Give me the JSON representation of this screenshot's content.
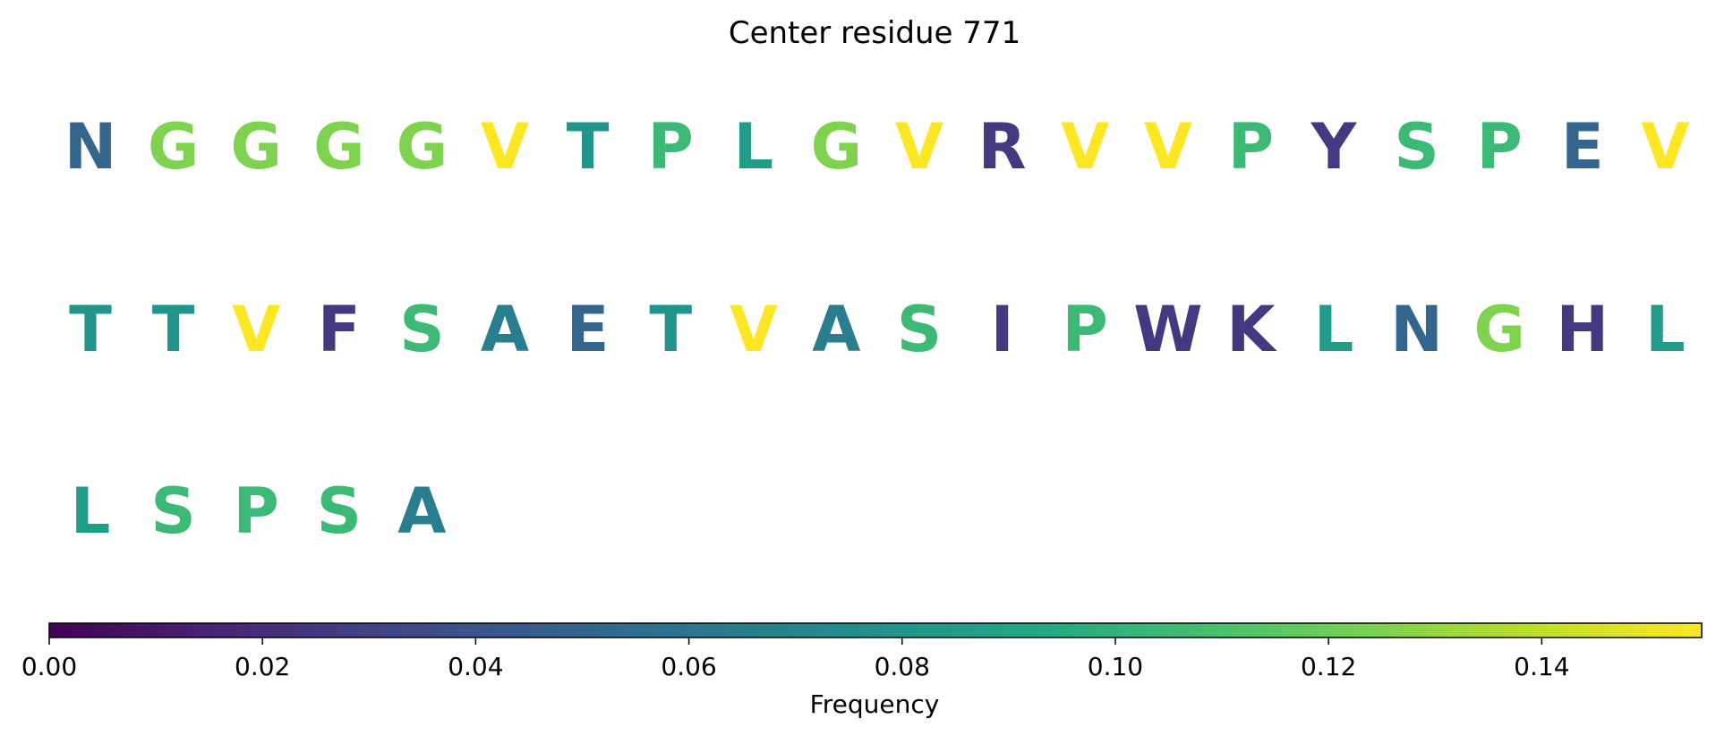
{
  "chart_data": {
    "type": "sequence-heat",
    "title": "Center residue 771",
    "residues": [
      {
        "aa": "N",
        "freq": 0.05
      },
      {
        "aa": "G",
        "freq": 0.125
      },
      {
        "aa": "G",
        "freq": 0.125
      },
      {
        "aa": "G",
        "freq": 0.125
      },
      {
        "aa": "G",
        "freq": 0.125
      },
      {
        "aa": "V",
        "freq": 0.155
      },
      {
        "aa": "T",
        "freq": 0.08
      },
      {
        "aa": "P",
        "freq": 0.105
      },
      {
        "aa": "L",
        "freq": 0.085
      },
      {
        "aa": "G",
        "freq": 0.125
      },
      {
        "aa": "V",
        "freq": 0.155
      },
      {
        "aa": "R",
        "freq": 0.025
      },
      {
        "aa": "V",
        "freq": 0.155
      },
      {
        "aa": "V",
        "freq": 0.155
      },
      {
        "aa": "P",
        "freq": 0.105
      },
      {
        "aa": "Y",
        "freq": 0.025
      },
      {
        "aa": "S",
        "freq": 0.105
      },
      {
        "aa": "P",
        "freq": 0.105
      },
      {
        "aa": "E",
        "freq": 0.05
      },
      {
        "aa": "V",
        "freq": 0.155
      },
      {
        "aa": "T",
        "freq": 0.08
      },
      {
        "aa": "T",
        "freq": 0.08
      },
      {
        "aa": "V",
        "freq": 0.155
      },
      {
        "aa": "F",
        "freq": 0.025
      },
      {
        "aa": "S",
        "freq": 0.105
      },
      {
        "aa": "A",
        "freq": 0.065
      },
      {
        "aa": "E",
        "freq": 0.05
      },
      {
        "aa": "T",
        "freq": 0.08
      },
      {
        "aa": "V",
        "freq": 0.155
      },
      {
        "aa": "A",
        "freq": 0.065
      },
      {
        "aa": "S",
        "freq": 0.105
      },
      {
        "aa": "I",
        "freq": 0.025
      },
      {
        "aa": "P",
        "freq": 0.105
      },
      {
        "aa": "W",
        "freq": 0.025
      },
      {
        "aa": "K",
        "freq": 0.025
      },
      {
        "aa": "L",
        "freq": 0.085
      },
      {
        "aa": "N",
        "freq": 0.05
      },
      {
        "aa": "G",
        "freq": 0.125
      },
      {
        "aa": "H",
        "freq": 0.025
      },
      {
        "aa": "L",
        "freq": 0.085
      },
      {
        "aa": "L",
        "freq": 0.085
      },
      {
        "aa": "S",
        "freq": 0.105
      },
      {
        "aa": "P",
        "freq": 0.105
      },
      {
        "aa": "S",
        "freq": 0.105
      },
      {
        "aa": "A",
        "freq": 0.065
      }
    ],
    "per_row": 20,
    "colorbar": {
      "label": "Frequency",
      "colormap": "viridis",
      "range": [
        0,
        0.155
      ],
      "ticks": [
        0.0,
        0.02,
        0.04,
        0.06,
        0.08,
        0.1,
        0.12,
        0.14
      ],
      "tick_labels": [
        "0.00",
        "0.02",
        "0.04",
        "0.06",
        "0.08",
        "0.10",
        "0.12",
        "0.14"
      ]
    }
  }
}
